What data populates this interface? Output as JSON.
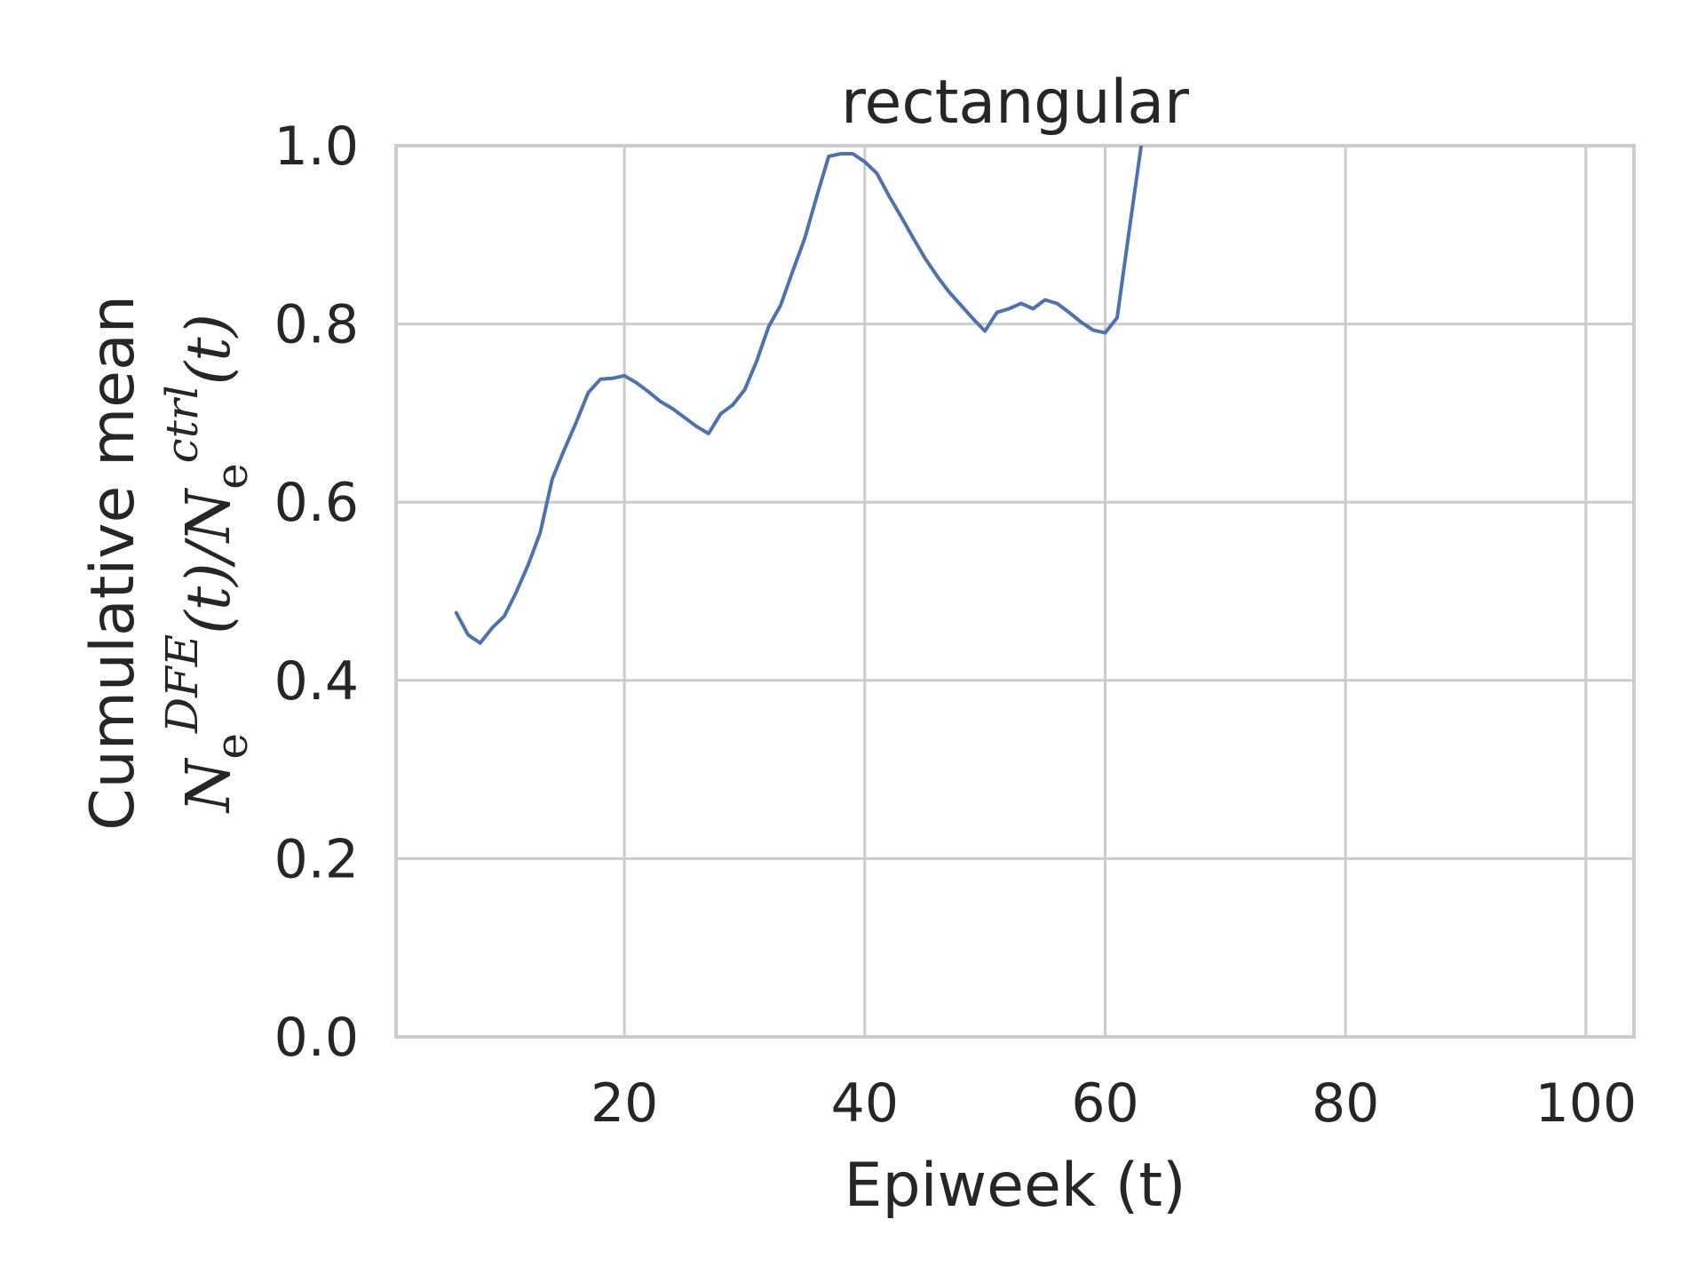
{
  "chart_data": {
    "type": "line",
    "title": "rectangular",
    "xlabel": "Epiweek (t)",
    "ylabel": {
      "line1": "Cumulative mean",
      "line2": "N_e^{DFE}(t)/N_e^{ctrl}(t)"
    },
    "xlim": [
      1,
      104
    ],
    "ylim": [
      0.0,
      1.0
    ],
    "xticks": [
      20,
      40,
      60,
      80,
      100
    ],
    "yticks": [
      0.0,
      0.2,
      0.4,
      0.6,
      0.8,
      1.0
    ],
    "ytick_labels": [
      "0.0",
      "0.2",
      "0.4",
      "0.6",
      "0.8",
      "1.0"
    ],
    "xtick_labels": [
      "20",
      "40",
      "60",
      "80",
      "100"
    ],
    "grid": true,
    "series": [
      {
        "color": "#4c72b0",
        "x": [
          6,
          7,
          8,
          9,
          10,
          11,
          12,
          13,
          14,
          15,
          16,
          17,
          18,
          19,
          20,
          21,
          22,
          23,
          24,
          25,
          26,
          27,
          28,
          29,
          30,
          31,
          32,
          33,
          34,
          35,
          36,
          37,
          38,
          39,
          40,
          41,
          42,
          43,
          44,
          45,
          46,
          47,
          48,
          49,
          50,
          51,
          52,
          53,
          54,
          55,
          56,
          57,
          58,
          59,
          60,
          61,
          62,
          63
        ],
        "y": [
          0.476,
          0.451,
          0.442,
          0.459,
          0.472,
          0.499,
          0.53,
          0.566,
          0.626,
          0.659,
          0.69,
          0.723,
          0.738,
          0.739,
          0.742,
          0.734,
          0.724,
          0.713,
          0.705,
          0.695,
          0.685,
          0.677,
          0.699,
          0.709,
          0.726,
          0.758,
          0.797,
          0.821,
          0.859,
          0.896,
          0.943,
          0.988,
          0.991,
          0.991,
          0.982,
          0.969,
          0.944,
          0.921,
          0.897,
          0.874,
          0.854,
          0.836,
          0.821,
          0.806,
          0.792,
          0.813,
          0.817,
          0.823,
          0.817,
          0.827,
          0.823,
          0.813,
          0.802,
          0.793,
          0.79,
          0.807,
          0.905,
          1.0
        ]
      }
    ]
  }
}
